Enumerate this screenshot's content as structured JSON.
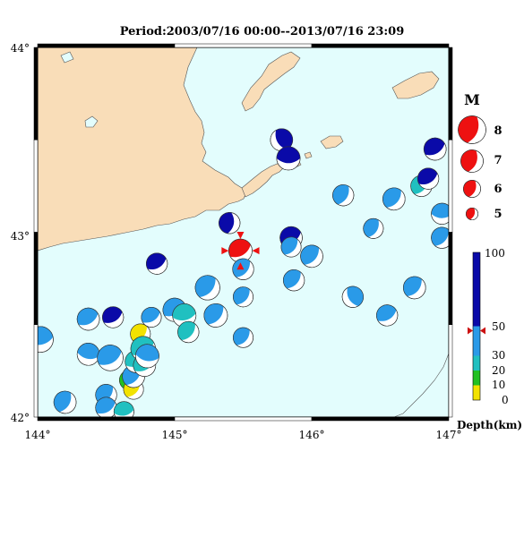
{
  "title": "Period:2003/07/16 00:00--2013/07/16 23:09",
  "axes": {
    "x_ticks": [
      "144°",
      "145°",
      "146°",
      "147°"
    ],
    "y_ticks": [
      "44°",
      "43°",
      "42°"
    ],
    "lon_range": [
      144,
      147
    ],
    "lat_range": [
      42,
      44
    ]
  },
  "magnitude_legend": {
    "title": "M",
    "items": [
      "8",
      "7",
      "6",
      "5"
    ]
  },
  "depth_legend": {
    "title": "Depth(km)",
    "ticks": [
      "100",
      "50",
      "30",
      "20",
      "10",
      "0"
    ],
    "bands": [
      {
        "from": 0,
        "to": 10,
        "color": "#f2e200"
      },
      {
        "from": 10,
        "to": 20,
        "color": "#22c022"
      },
      {
        "from": 20,
        "to": 30,
        "color": "#20c0c0"
      },
      {
        "from": 30,
        "to": 50,
        "color": "#2a9ae8"
      },
      {
        "from": 50,
        "to": 100,
        "color": "#0a0aa8"
      }
    ],
    "marker_depth": 47
  },
  "colors": {
    "sea": "#e3fdfd",
    "land": "#f9ddb8",
    "coast": "#555555",
    "highlight": "#ee1111"
  },
  "events": [
    {
      "lon": 144.02,
      "lat": 42.42,
      "depth": 40,
      "mag": 5.6,
      "rot": 80
    },
    {
      "lon": 144.2,
      "lat": 42.08,
      "depth": 40,
      "mag": 5.3,
      "rot": 30
    },
    {
      "lon": 144.37,
      "lat": 42.53,
      "depth": 40,
      "mag": 5.3,
      "rot": 60
    },
    {
      "lon": 144.37,
      "lat": 42.34,
      "depth": 40,
      "mag": 5.3,
      "rot": 100
    },
    {
      "lon": 144.5,
      "lat": 42.12,
      "depth": 40,
      "mag": 5.2,
      "rot": 40
    },
    {
      "lon": 144.5,
      "lat": 42.05,
      "depth": 40,
      "mag": 5.2,
      "rot": 60
    },
    {
      "lon": 144.53,
      "lat": 42.32,
      "depth": 40,
      "mag": 5.6,
      "rot": 60
    },
    {
      "lon": 144.55,
      "lat": 42.54,
      "depth": 60,
      "mag": 5.2,
      "rot": 60
    },
    {
      "lon": 144.63,
      "lat": 42.03,
      "depth": 25,
      "mag": 5.1,
      "rot": 80
    },
    {
      "lon": 144.67,
      "lat": 42.2,
      "depth": 15,
      "mag": 5.1,
      "rot": 30
    },
    {
      "lon": 144.7,
      "lat": 42.15,
      "depth": 5,
      "mag": 5.1,
      "rot": 40
    },
    {
      "lon": 144.7,
      "lat": 42.22,
      "depth": 40,
      "mag": 5.3,
      "rot": 40
    },
    {
      "lon": 144.72,
      "lat": 42.3,
      "depth": 25,
      "mag": 5.3,
      "rot": 70
    },
    {
      "lon": 144.75,
      "lat": 42.45,
      "depth": 5,
      "mag": 5.1,
      "rot": 40
    },
    {
      "lon": 144.77,
      "lat": 42.37,
      "depth": 25,
      "mag": 5.5,
      "rot": 60
    },
    {
      "lon": 144.78,
      "lat": 42.28,
      "depth": 25,
      "mag": 5.3,
      "rot": 60
    },
    {
      "lon": 144.8,
      "lat": 42.33,
      "depth": 40,
      "mag": 5.4,
      "rot": 100
    },
    {
      "lon": 144.83,
      "lat": 42.54,
      "depth": 40,
      "mag": 5.1,
      "rot": 60
    },
    {
      "lon": 144.87,
      "lat": 42.83,
      "depth": 70,
      "mag": 5.2,
      "rot": 60
    },
    {
      "lon": 145.0,
      "lat": 42.58,
      "depth": 40,
      "mag": 5.4,
      "rot": 60
    },
    {
      "lon": 145.07,
      "lat": 42.55,
      "depth": 25,
      "mag": 5.4,
      "rot": 80
    },
    {
      "lon": 145.1,
      "lat": 42.46,
      "depth": 25,
      "mag": 5.2,
      "rot": 40
    },
    {
      "lon": 145.24,
      "lat": 42.7,
      "depth": 40,
      "mag": 5.5,
      "rot": 40
    },
    {
      "lon": 145.3,
      "lat": 42.55,
      "depth": 40,
      "mag": 5.4,
      "rot": 40
    },
    {
      "lon": 145.4,
      "lat": 43.05,
      "depth": 70,
      "mag": 5.2,
      "rot": 10
    },
    {
      "lon": 145.48,
      "lat": 42.9,
      "depth": 47,
      "mag": 5.4,
      "rot": 60,
      "highlight": true
    },
    {
      "lon": 145.5,
      "lat": 42.8,
      "depth": 40,
      "mag": 5.2,
      "rot": 40
    },
    {
      "lon": 145.5,
      "lat": 42.65,
      "depth": 40,
      "mag": 5.1,
      "rot": 40
    },
    {
      "lon": 145.5,
      "lat": 42.43,
      "depth": 40,
      "mag": 5.1,
      "rot": 40
    },
    {
      "lon": 145.78,
      "lat": 43.5,
      "depth": 70,
      "mag": 5.3,
      "rot": 150
    },
    {
      "lon": 145.83,
      "lat": 43.4,
      "depth": 70,
      "mag": 5.4,
      "rot": 90
    },
    {
      "lon": 145.85,
      "lat": 42.97,
      "depth": 70,
      "mag": 5.3,
      "rot": 60
    },
    {
      "lon": 145.85,
      "lat": 42.92,
      "depth": 40,
      "mag": 5.1,
      "rot": 40
    },
    {
      "lon": 145.87,
      "lat": 42.74,
      "depth": 40,
      "mag": 5.2,
      "rot": 40
    },
    {
      "lon": 146.0,
      "lat": 42.87,
      "depth": 40,
      "mag": 5.3,
      "rot": 40
    },
    {
      "lon": 146.23,
      "lat": 43.2,
      "depth": 40,
      "mag": 5.2,
      "rot": 30
    },
    {
      "lon": 146.3,
      "lat": 42.65,
      "depth": 40,
      "mag": 5.2,
      "rot": 150
    },
    {
      "lon": 146.45,
      "lat": 43.02,
      "depth": 40,
      "mag": 5.1,
      "rot": 30
    },
    {
      "lon": 146.55,
      "lat": 42.55,
      "depth": 40,
      "mag": 5.2,
      "rot": 60
    },
    {
      "lon": 146.6,
      "lat": 43.18,
      "depth": 40,
      "mag": 5.3,
      "rot": 40
    },
    {
      "lon": 146.75,
      "lat": 42.7,
      "depth": 40,
      "mag": 5.3,
      "rot": 40
    },
    {
      "lon": 146.8,
      "lat": 43.25,
      "depth": 25,
      "mag": 5.2,
      "rot": 40
    },
    {
      "lon": 146.85,
      "lat": 43.29,
      "depth": 70,
      "mag": 5.2,
      "rot": 60
    },
    {
      "lon": 146.9,
      "lat": 43.45,
      "depth": 70,
      "mag": 5.3,
      "rot": 60
    },
    {
      "lon": 146.95,
      "lat": 43.1,
      "depth": 40,
      "mag": 5.2,
      "rot": 90
    },
    {
      "lon": 146.95,
      "lat": 42.97,
      "depth": 40,
      "mag": 5.2,
      "rot": 40
    }
  ]
}
